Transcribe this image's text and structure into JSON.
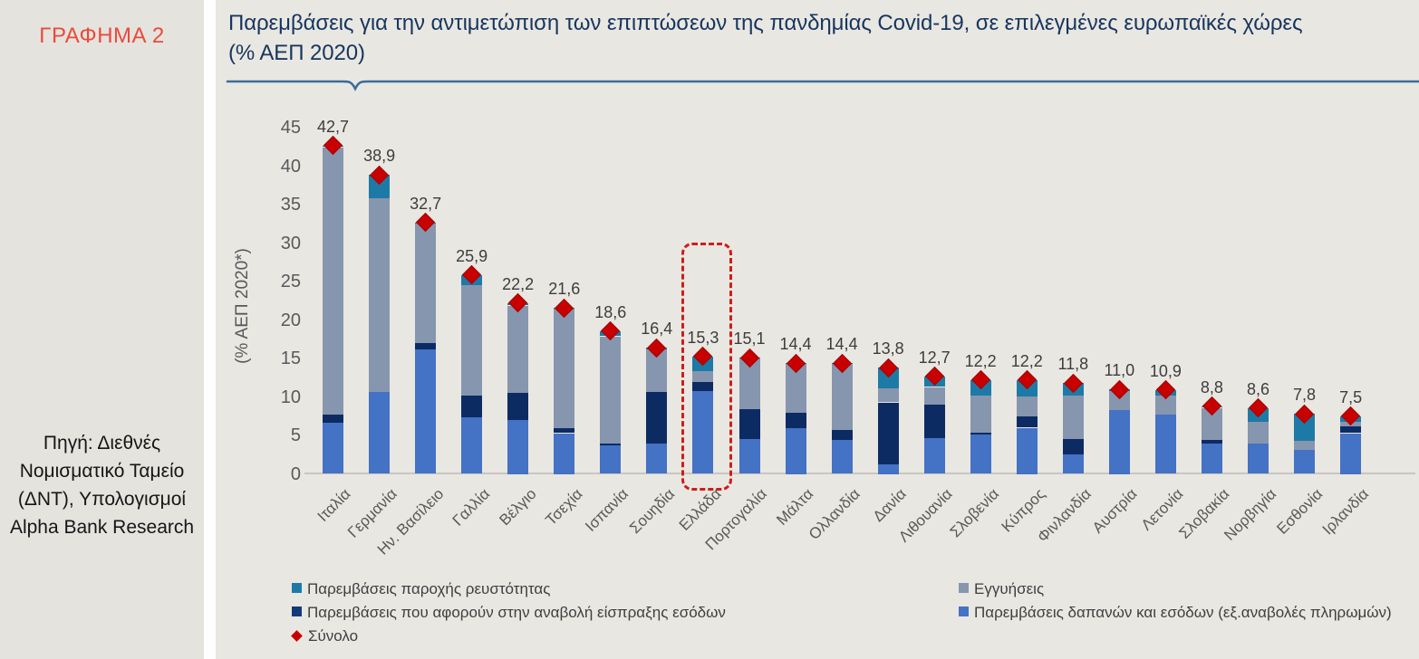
{
  "sidebar": {
    "figure_label": "ΓΡΑΦΗΜΑ 2",
    "source": "Πηγή: Διεθνές Νομισματικό Ταμείο (ΔΝΤ), Υπολογισμοί Alpha Bank Research"
  },
  "chart": {
    "title": "Παρεμβάσεις για την αντιμετώπιση των επιπτώσεων της πανδημίας Covid-19, σε επιλεγμένες ευρωπαϊκές χώρες (% ΑΕΠ 2020)",
    "ylabel": "(% ΑΕΠ 2020*)"
  },
  "palette": {
    "expenditure_blue": "#4472c4",
    "deferral_navy": "#0d2b63",
    "guarantees_grey": "#8796af",
    "liquidity_teal": "#1d7aa6",
    "total_red": "#c80000",
    "title_navy": "#17365d",
    "divider_steel": "#3a6d9e",
    "figure_label_red": "#e84b3c",
    "panel_bg": "#e9e7e2",
    "sidebar_bg": "#e5e3de"
  },
  "chart_data": {
    "type": "bar",
    "subtype": "stacked-bar-with-total-markers",
    "title": "Παρεμβάσεις για την αντιμετώπιση των επιπτώσεων της πανδημίας Covid-19, σε επιλεγμένες ευρωπαϊκές χώρες (% ΑΕΠ 2020)",
    "xlabel": "",
    "ylabel": "(% ΑΕΠ 2020*)",
    "ylim": [
      0,
      45
    ],
    "ytick_step": 5,
    "grid": false,
    "categories": [
      "Ιταλία",
      "Γερμανία",
      "Ην. Βασίλειο",
      "Γαλλία",
      "Βέλγιο",
      "Τσεχία",
      "Ισπανία",
      "Σουηδία",
      "Ελλάδα",
      "Πορτογαλία",
      "Μάλτα",
      "Ολλανδία",
      "Δανία",
      "Λιθουανία",
      "Σλοβενία",
      "Κύπρος",
      "Φινλανδία",
      "Αυστρία",
      "Λετονία",
      "Σλοβακία",
      "Νορβηγία",
      "Εσθονία",
      "Ιρλανδία"
    ],
    "series": [
      {
        "name": "Παρεμβάσεις δαπανών και εσόδων (εξ.αναβολές πληρωμών)",
        "color": "#4472c4",
        "values": [
          6.7,
          10.7,
          16.2,
          7.4,
          7.0,
          5.3,
          3.7,
          3.9,
          10.8,
          4.5,
          6.0,
          4.4,
          1.3,
          4.6,
          5.1,
          6.0,
          2.5,
          8.3,
          7.7,
          3.9,
          3.9,
          3.1,
          5.3
        ]
      },
      {
        "name": "Παρεμβάσεις που αφορούν στην αναβολή είσπραξης εσόδων",
        "color": "#0d2b63",
        "values": [
          1.0,
          0.0,
          0.8,
          2.8,
          3.5,
          0.6,
          0.3,
          6.8,
          1.2,
          3.9,
          2.0,
          1.3,
          8.0,
          4.4,
          0.3,
          1.5,
          2.0,
          0.0,
          0.0,
          0.5,
          0.0,
          0.0,
          0.9
        ]
      },
      {
        "name": "Εγγυήσεις",
        "color": "#8796af",
        "values": [
          34.8,
          25.2,
          15.5,
          14.4,
          11.4,
          15.6,
          13.9,
          5.5,
          1.4,
          6.6,
          6.3,
          8.6,
          1.8,
          2.3,
          4.8,
          2.6,
          5.7,
          2.5,
          2.5,
          4.2,
          2.9,
          1.2,
          0.6
        ]
      },
      {
        "name": "Παρεμβάσεις παροχής ρευστότητας",
        "color": "#1d7aa6",
        "values": [
          0.2,
          3.0,
          0.2,
          1.3,
          0.3,
          0.1,
          0.7,
          0.2,
          1.9,
          0.1,
          0.1,
          0.1,
          2.7,
          1.4,
          2.0,
          2.1,
          1.6,
          0.2,
          0.7,
          0.2,
          1.8,
          3.5,
          0.7
        ]
      }
    ],
    "totals": [
      42.7,
      38.9,
      32.7,
      25.9,
      22.2,
      21.6,
      18.6,
      16.4,
      15.3,
      15.1,
      14.4,
      14.4,
      13.8,
      12.7,
      12.2,
      12.2,
      11.8,
      11.0,
      10.9,
      8.8,
      8.6,
      7.8,
      7.5
    ],
    "total_labels": [
      "42,7",
      "38,9",
      "32,7",
      "25,9",
      "22,2",
      "21,6",
      "18,6",
      "16,4",
      "15,3",
      "15,1",
      "14,4",
      "14,4",
      "13,8",
      "12,7",
      "12,2",
      "12,2",
      "11,8",
      "11,0",
      "10,9",
      "8,8",
      "8,6",
      "7,8",
      "7,5"
    ],
    "total_marker": {
      "name": "Σύνολο",
      "shape": "diamond",
      "color": "#c80000"
    },
    "highlight": {
      "category": "Ελλάδα",
      "style": "red-dashed-rounded-box"
    },
    "legend_position": "bottom",
    "legend_items": [
      {
        "label": "Παρεμβάσεις παροχής ρευστότητας",
        "marker": "square",
        "color": "#1d7aa6",
        "col": 0,
        "row": 0
      },
      {
        "label": "Εγγυήσεις",
        "marker": "square",
        "color": "#8796af",
        "col": 1,
        "row": 0
      },
      {
        "label": "Παρεμβάσεις που αφορούν στην αναβολή  είσπραξης εσόδων",
        "marker": "square",
        "color": "#123a77",
        "col": 0,
        "row": 1
      },
      {
        "label": "Παρεμβάσεις δαπανών και εσόδων (εξ.αναβολές πληρωμών)",
        "marker": "square",
        "color": "#4472c4",
        "col": 1,
        "row": 1
      },
      {
        "label": "Σύνολο",
        "marker": "diamond",
        "color": "#c80000",
        "col": 0,
        "row": 2
      }
    ]
  }
}
